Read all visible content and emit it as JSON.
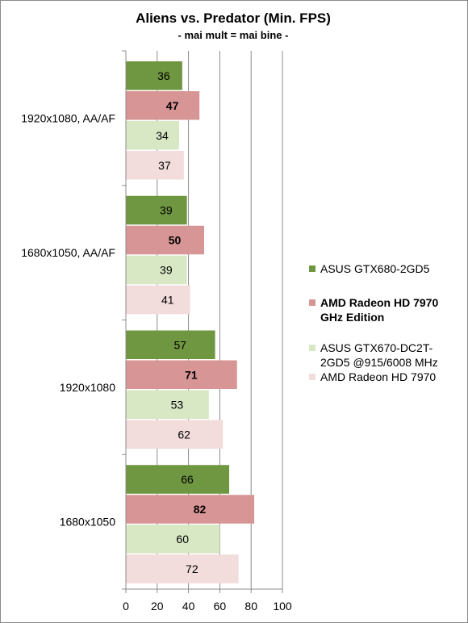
{
  "chart_data": {
    "type": "bar",
    "orientation": "horizontal",
    "title": "Aliens vs. Predator (Min. FPS)",
    "subtitle": "- mai mult = mai bine -",
    "categories": [
      "1920x1080, AA/AF",
      "1680x1050, AA/AF",
      "1920x1080",
      "1680x1050"
    ],
    "xlim": [
      0,
      100
    ],
    "xticks": [
      "0",
      "20",
      "40",
      "60",
      "80",
      "100"
    ],
    "grid": true,
    "legend_position": "right",
    "series": [
      {
        "name": "ASUS GTX680-2GD5",
        "legend_lines": [
          "ASUS GTX680-2GD5"
        ],
        "color": "#6f9640",
        "bold": false,
        "values": [
          36,
          39,
          57,
          66
        ]
      },
      {
        "name": "AMD Radeon HD 7970 GHz Edition",
        "legend_lines": [
          "AMD Radeon HD 7970",
          "GHz Edition"
        ],
        "color": "#d89595",
        "bold": true,
        "values": [
          47,
          50,
          71,
          82
        ]
      },
      {
        "name": "ASUS GTX670-DC2T-2GD5 @915/6008 MHz",
        "legend_lines": [
          "ASUS GTX670-DC2T-",
          "2GD5 @915/6008 MHz"
        ],
        "color": "#d8e7c4",
        "bold": false,
        "values": [
          34,
          39,
          53,
          60
        ]
      },
      {
        "name": "AMD Radeon HD 7970",
        "legend_lines": [
          "AMD Radeon HD 7970"
        ],
        "color": "#f2dcdc",
        "bold": false,
        "values": [
          37,
          41,
          62,
          72
        ]
      }
    ]
  }
}
